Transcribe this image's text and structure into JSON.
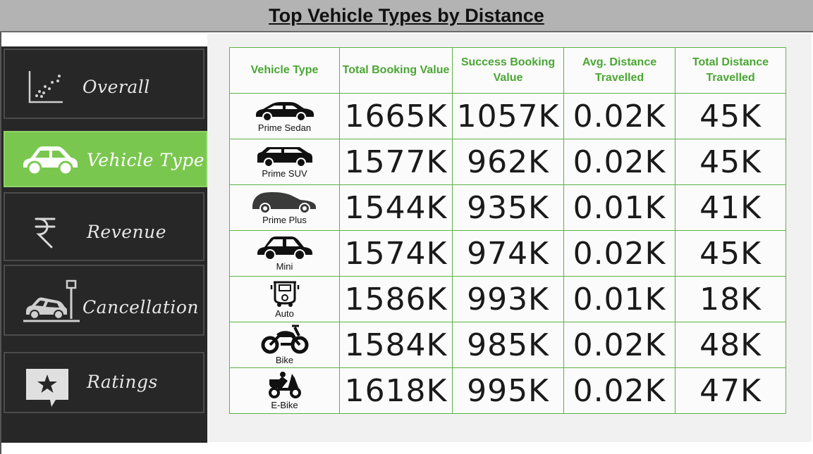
{
  "header": {
    "title": "Top Vehicle Types by Distance"
  },
  "sidebar": {
    "items": [
      {
        "label": "Overall",
        "icon": "scatter-chart-icon",
        "active": false
      },
      {
        "label": "Vehicle Type",
        "icon": "car-icon",
        "active": true
      },
      {
        "label": "Revenue",
        "icon": "rupee-icon",
        "active": false
      },
      {
        "label": "Cancellation",
        "icon": "car-crash-icon",
        "active": false
      },
      {
        "label": "Ratings",
        "icon": "star-chat-icon",
        "active": false
      }
    ],
    "active_color": "#7ac74f",
    "background_color": "#272727"
  },
  "table": {
    "headers": [
      "Vehicle Type",
      "Total Booking Value",
      "Success Booking Value",
      "Avg. Distance Travelled",
      "Total Distance Travelled"
    ],
    "header_color": "#4aa633",
    "rows": [
      {
        "vehicle": "Prime Sedan",
        "icon": "sedan-icon",
        "total_booking": "1665K",
        "success_booking": "1057K",
        "avg_distance": "0.02K",
        "total_distance": "45K"
      },
      {
        "vehicle": "Prime SUV",
        "icon": "suv-icon",
        "total_booking": "1577K",
        "success_booking": "962K",
        "avg_distance": "0.02K",
        "total_distance": "45K"
      },
      {
        "vehicle": "Prime Plus",
        "icon": "hatchback-icon",
        "total_booking": "1544K",
        "success_booking": "935K",
        "avg_distance": "0.01K",
        "total_distance": "41K"
      },
      {
        "vehicle": "Mini",
        "icon": "mini-car-icon",
        "total_booking": "1574K",
        "success_booking": "974K",
        "avg_distance": "0.02K",
        "total_distance": "45K"
      },
      {
        "vehicle": "Auto",
        "icon": "auto-rickshaw-icon",
        "total_booking": "1586K",
        "success_booking": "993K",
        "avg_distance": "0.01K",
        "total_distance": "18K"
      },
      {
        "vehicle": "Bike",
        "icon": "motorbike-icon",
        "total_booking": "1584K",
        "success_booking": "985K",
        "avg_distance": "0.02K",
        "total_distance": "48K"
      },
      {
        "vehicle": "E-Bike",
        "icon": "scooter-icon",
        "total_booking": "1618K",
        "success_booking": "995K",
        "avg_distance": "0.02K",
        "total_distance": "47K"
      }
    ]
  }
}
